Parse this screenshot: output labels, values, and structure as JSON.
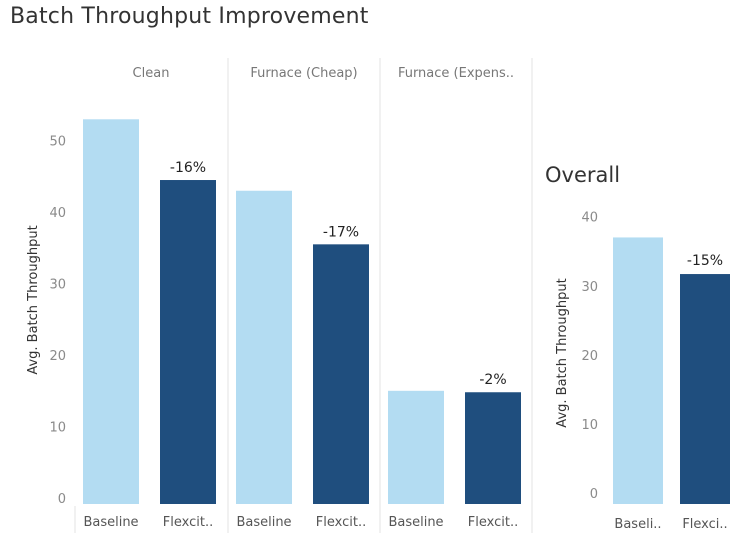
{
  "title": "Batch Throughput Improvement",
  "colors": {
    "baseline": "#b3dcf2",
    "flexciton": "#1f4e7e",
    "divider": "#e3e3e3"
  },
  "chart_data": [
    {
      "type": "bar",
      "ylabel": "Avg. Batch Throughput",
      "ylim": [
        0,
        55
      ],
      "yticks": [
        0,
        10,
        20,
        30,
        40,
        50
      ],
      "grid": false,
      "facets": [
        {
          "label": "Clean",
          "categories": [
            "Baseline",
            "Flexcit.."
          ],
          "values": [
            53,
            44.5
          ],
          "data_label": "-16%"
        },
        {
          "label": "Furnace (Cheap)",
          "categories": [
            "Baseline",
            "Flexcit.."
          ],
          "values": [
            43,
            35.5
          ],
          "data_label": "-17%"
        },
        {
          "label": "Furnace (Expens..",
          "categories": [
            "Baseline",
            "Flexcit.."
          ],
          "values": [
            15,
            14.8
          ],
          "data_label": "-2%"
        }
      ]
    },
    {
      "type": "bar",
      "title": "Overall",
      "ylabel": "Avg. Batch Throughput",
      "ylim": [
        0,
        43
      ],
      "yticks": [
        0,
        10,
        20,
        30,
        40
      ],
      "grid": false,
      "categories": [
        "Baseli..",
        "Flexci.."
      ],
      "values": [
        37,
        31.7
      ],
      "data_label": "-15%"
    }
  ]
}
